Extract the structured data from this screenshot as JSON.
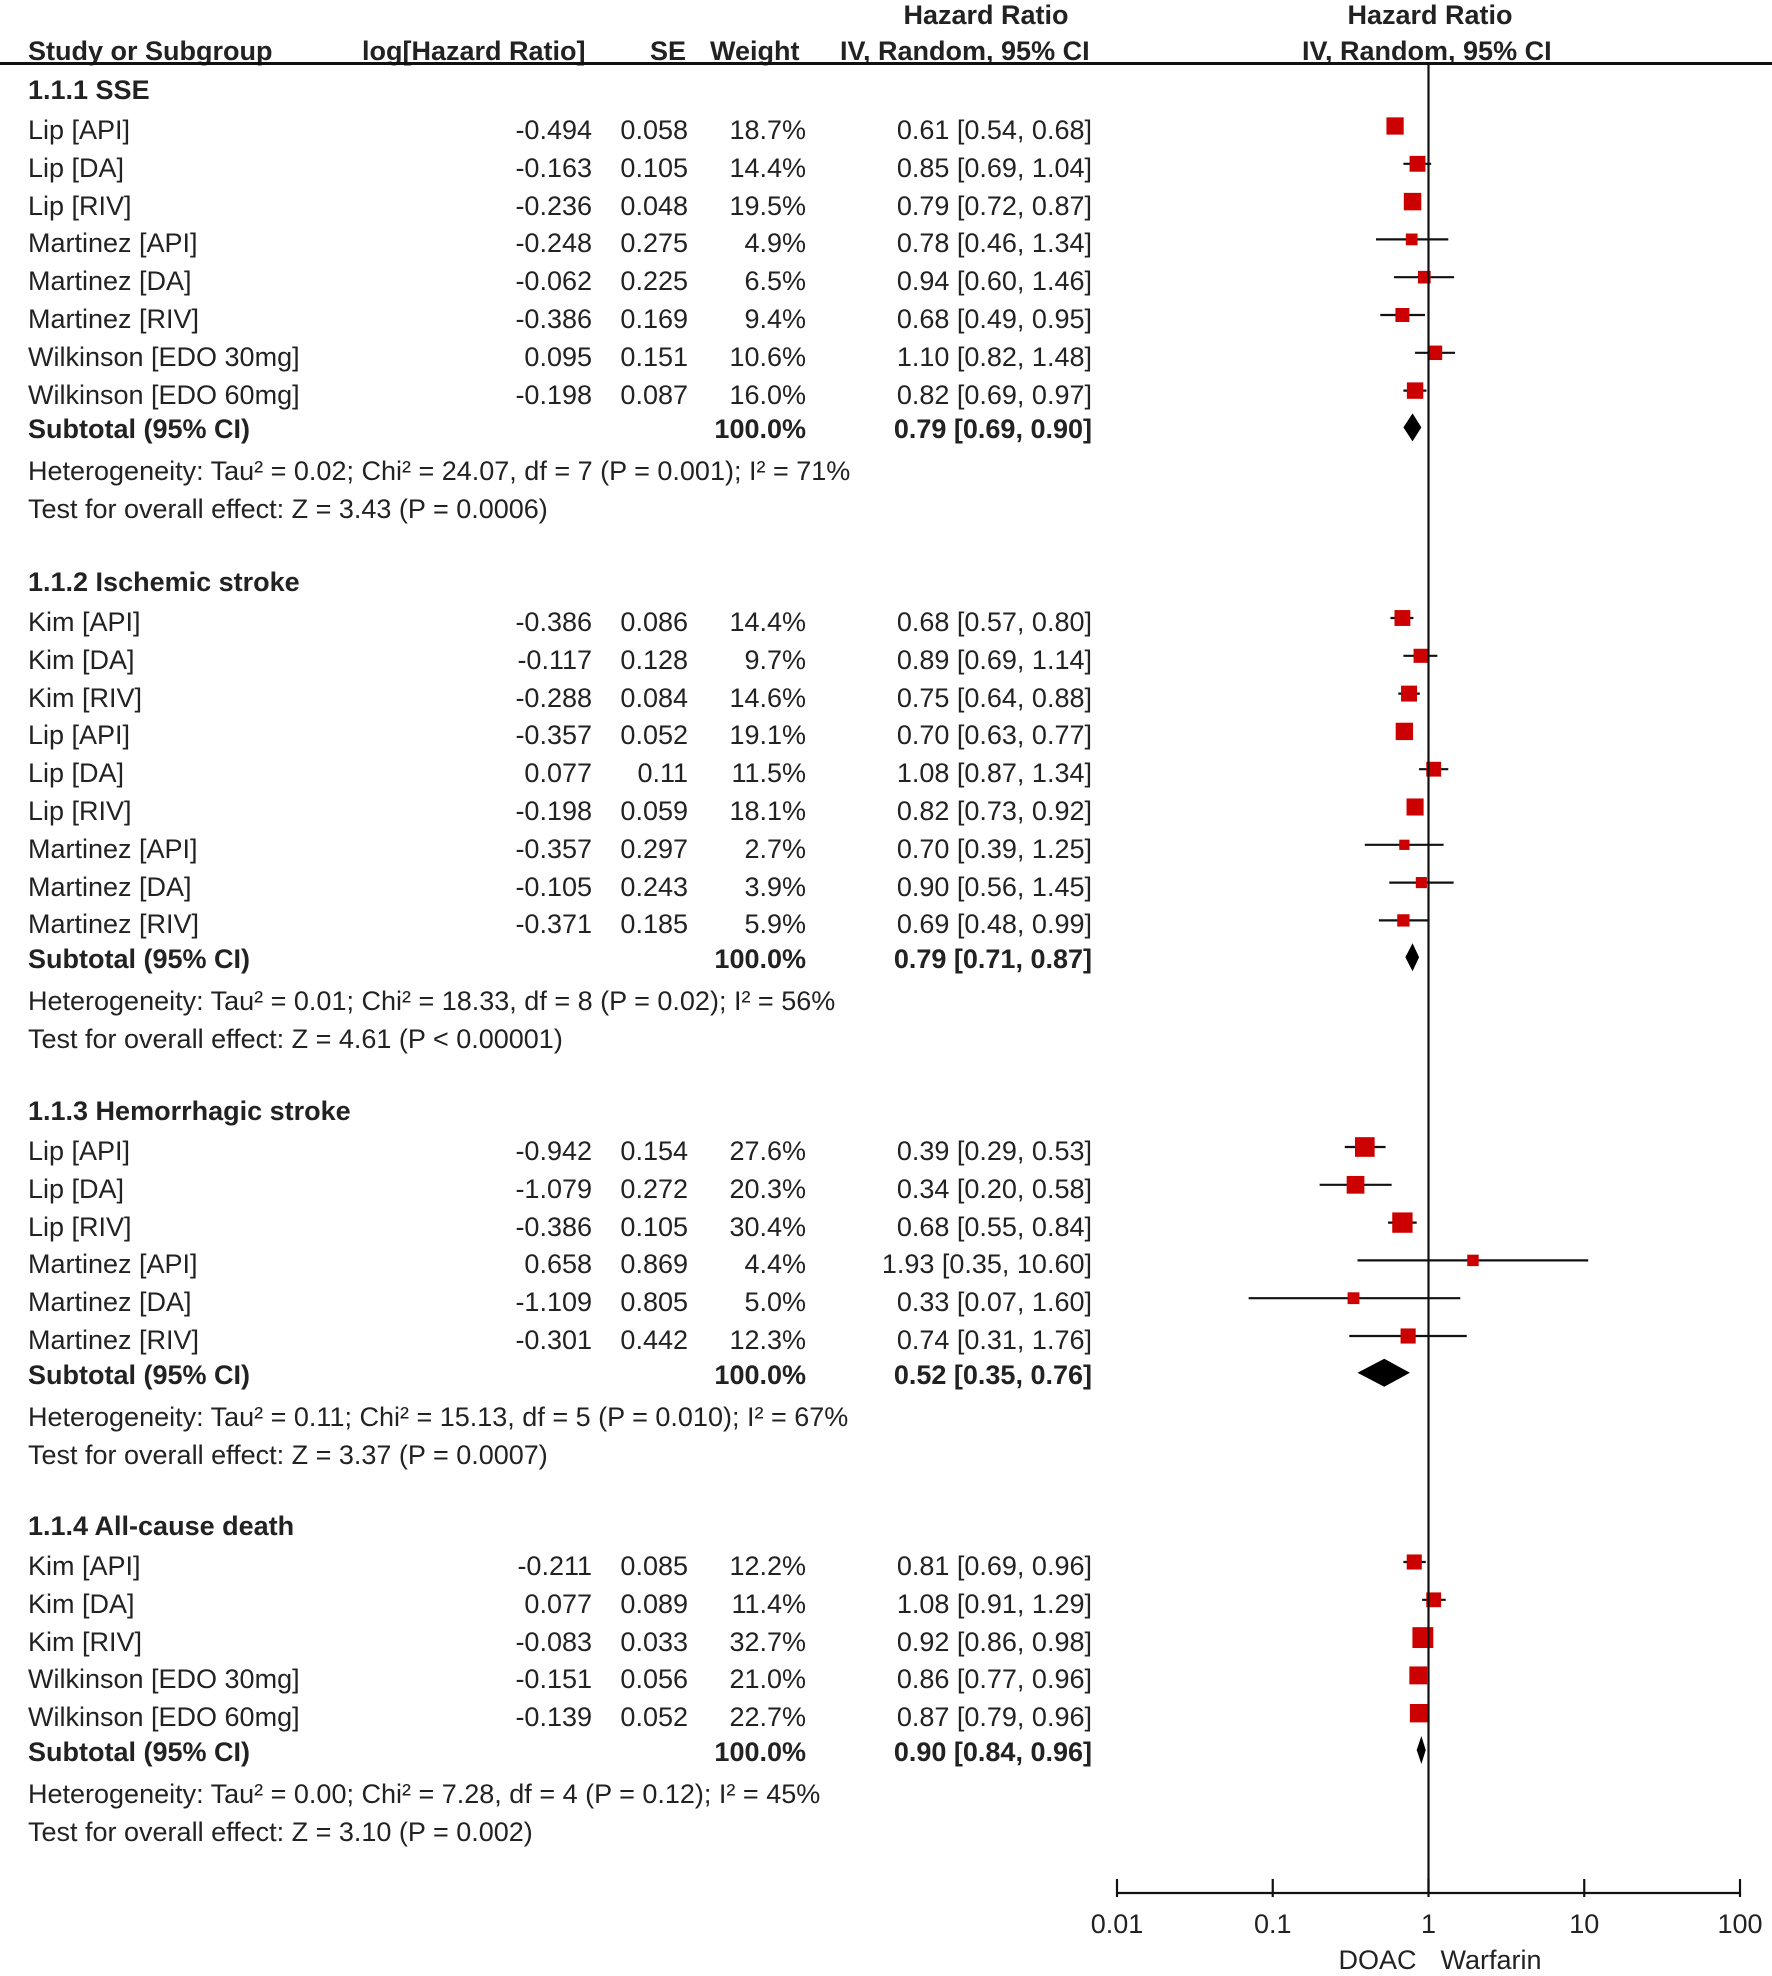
{
  "header": {
    "study_col": "Study or Subgroup",
    "loghr_col": "log[Hazard Ratio]",
    "se_col": "SE",
    "weight_col": "Weight",
    "hr_title": "Hazard Ratio",
    "hr_method": "IV, Random, 95% CI",
    "plot_title": "Hazard Ratio",
    "plot_method": "IV, Random, 95% CI"
  },
  "chart_data": {
    "type": "forest",
    "x_scale": "log",
    "xlim": [
      0.01,
      100
    ],
    "ticks": [
      "0.01",
      "0.1",
      "1",
      "10",
      "100"
    ],
    "tick_values": [
      0.01,
      0.1,
      1,
      10,
      100
    ],
    "axis_left_label": "DOAC",
    "axis_right_label": "Warfarin",
    "colors": {
      "study_marker": "#cc0000",
      "line": "#111111",
      "diamond": "#000000"
    },
    "groups": [
      {
        "name": "1.1.1 SSE",
        "studies": [
          {
            "study": "Lip [API]",
            "loghr": "-0.494",
            "se": "0.058",
            "weight": "18.7%",
            "ci_text": "0.61 [0.54, 0.68]",
            "hr": 0.61,
            "lo": 0.54,
            "hi": 0.68,
            "w": 18.7
          },
          {
            "study": "Lip [DA]",
            "loghr": "-0.163",
            "se": "0.105",
            "weight": "14.4%",
            "ci_text": "0.85 [0.69, 1.04]",
            "hr": 0.85,
            "lo": 0.69,
            "hi": 1.04,
            "w": 14.4
          },
          {
            "study": "Lip [RIV]",
            "loghr": "-0.236",
            "se": "0.048",
            "weight": "19.5%",
            "ci_text": "0.79 [0.72, 0.87]",
            "hr": 0.79,
            "lo": 0.72,
            "hi": 0.87,
            "w": 19.5
          },
          {
            "study": "Martinez [API]",
            "loghr": "-0.248",
            "se": "0.275",
            "weight": "4.9%",
            "ci_text": "0.78 [0.46, 1.34]",
            "hr": 0.78,
            "lo": 0.46,
            "hi": 1.34,
            "w": 4.9
          },
          {
            "study": "Martinez [DA]",
            "loghr": "-0.062",
            "se": "0.225",
            "weight": "6.5%",
            "ci_text": "0.94 [0.60, 1.46]",
            "hr": 0.94,
            "lo": 0.6,
            "hi": 1.46,
            "w": 6.5
          },
          {
            "study": "Martinez [RIV]",
            "loghr": "-0.386",
            "se": "0.169",
            "weight": "9.4%",
            "ci_text": "0.68 [0.49, 0.95]",
            "hr": 0.68,
            "lo": 0.49,
            "hi": 0.95,
            "w": 9.4
          },
          {
            "study": "Wilkinson [EDO 30mg]",
            "loghr": "0.095",
            "se": "0.151",
            "weight": "10.6%",
            "ci_text": "1.10 [0.82, 1.48]",
            "hr": 1.1,
            "lo": 0.82,
            "hi": 1.48,
            "w": 10.6
          },
          {
            "study": "Wilkinson [EDO 60mg]",
            "loghr": "-0.198",
            "se": "0.087",
            "weight": "16.0%",
            "ci_text": "0.82 [0.69, 0.97]",
            "hr": 0.82,
            "lo": 0.69,
            "hi": 0.97,
            "w": 16.0
          }
        ],
        "subtotal": {
          "label": "Subtotal (95% CI)",
          "weight": "100.0%",
          "ci_text": "0.79 [0.69, 0.90]",
          "hr": 0.79,
          "lo": 0.69,
          "hi": 0.9
        },
        "heterogeneity": "Heterogeneity: Tau² = 0.02; Chi² = 24.07, df = 7 (P = 0.001); I² = 71%",
        "overall": "Test for overall effect: Z = 3.43 (P = 0.0006)"
      },
      {
        "name": "1.1.2 Ischemic stroke",
        "studies": [
          {
            "study": "Kim [API]",
            "loghr": "-0.386",
            "se": "0.086",
            "weight": "14.4%",
            "ci_text": "0.68 [0.57, 0.80]",
            "hr": 0.68,
            "lo": 0.57,
            "hi": 0.8,
            "w": 14.4
          },
          {
            "study": "Kim [DA]",
            "loghr": "-0.117",
            "se": "0.128",
            "weight": "9.7%",
            "ci_text": "0.89 [0.69, 1.14]",
            "hr": 0.89,
            "lo": 0.69,
            "hi": 1.14,
            "w": 9.7
          },
          {
            "study": "Kim [RIV]",
            "loghr": "-0.288",
            "se": "0.084",
            "weight": "14.6%",
            "ci_text": "0.75 [0.64, 0.88]",
            "hr": 0.75,
            "lo": 0.64,
            "hi": 0.88,
            "w": 14.6
          },
          {
            "study": "Lip [API]",
            "loghr": "-0.357",
            "se": "0.052",
            "weight": "19.1%",
            "ci_text": "0.70 [0.63, 0.77]",
            "hr": 0.7,
            "lo": 0.63,
            "hi": 0.77,
            "w": 19.1
          },
          {
            "study": "Lip [DA]",
            "loghr": "0.077",
            "se": "0.11",
            "weight": "11.5%",
            "ci_text": "1.08 [0.87, 1.34]",
            "hr": 1.08,
            "lo": 0.87,
            "hi": 1.34,
            "w": 11.5
          },
          {
            "study": "Lip [RIV]",
            "loghr": "-0.198",
            "se": "0.059",
            "weight": "18.1%",
            "ci_text": "0.82 [0.73, 0.92]",
            "hr": 0.82,
            "lo": 0.73,
            "hi": 0.92,
            "w": 18.1
          },
          {
            "study": "Martinez [API]",
            "loghr": "-0.357",
            "se": "0.297",
            "weight": "2.7%",
            "ci_text": "0.70 [0.39, 1.25]",
            "hr": 0.7,
            "lo": 0.39,
            "hi": 1.25,
            "w": 2.7
          },
          {
            "study": "Martinez [DA]",
            "loghr": "-0.105",
            "se": "0.243",
            "weight": "3.9%",
            "ci_text": "0.90 [0.56, 1.45]",
            "hr": 0.9,
            "lo": 0.56,
            "hi": 1.45,
            "w": 3.9
          },
          {
            "study": "Martinez [RIV]",
            "loghr": "-0.371",
            "se": "0.185",
            "weight": "5.9%",
            "ci_text": "0.69 [0.48, 0.99]",
            "hr": 0.69,
            "lo": 0.48,
            "hi": 0.99,
            "w": 5.9
          }
        ],
        "subtotal": {
          "label": "Subtotal (95% CI)",
          "weight": "100.0%",
          "ci_text": "0.79 [0.71, 0.87]",
          "hr": 0.79,
          "lo": 0.71,
          "hi": 0.87
        },
        "heterogeneity": "Heterogeneity: Tau² = 0.01; Chi² = 18.33, df = 8 (P = 0.02); I² = 56%",
        "overall": "Test for overall effect: Z = 4.61 (P < 0.00001)"
      },
      {
        "name": "1.1.3 Hemorrhagic stroke",
        "studies": [
          {
            "study": "Lip [API]",
            "loghr": "-0.942",
            "se": "0.154",
            "weight": "27.6%",
            "ci_text": "0.39 [0.29, 0.53]",
            "hr": 0.39,
            "lo": 0.29,
            "hi": 0.53,
            "w": 27.6
          },
          {
            "study": "Lip [DA]",
            "loghr": "-1.079",
            "se": "0.272",
            "weight": "20.3%",
            "ci_text": "0.34 [0.20, 0.58]",
            "hr": 0.34,
            "lo": 0.2,
            "hi": 0.58,
            "w": 20.3
          },
          {
            "study": "Lip [RIV]",
            "loghr": "-0.386",
            "se": "0.105",
            "weight": "30.4%",
            "ci_text": "0.68 [0.55, 0.84]",
            "hr": 0.68,
            "lo": 0.55,
            "hi": 0.84,
            "w": 30.4
          },
          {
            "study": "Martinez [API]",
            "loghr": "0.658",
            "se": "0.869",
            "weight": "4.4%",
            "ci_text": "1.93 [0.35, 10.60]",
            "hr": 1.93,
            "lo": 0.35,
            "hi": 10.6,
            "w": 4.4
          },
          {
            "study": "Martinez [DA]",
            "loghr": "-1.109",
            "se": "0.805",
            "weight": "5.0%",
            "ci_text": "0.33 [0.07, 1.60]",
            "hr": 0.33,
            "lo": 0.07,
            "hi": 1.6,
            "w": 5.0
          },
          {
            "study": "Martinez [RIV]",
            "loghr": "-0.301",
            "se": "0.442",
            "weight": "12.3%",
            "ci_text": "0.74 [0.31, 1.76]",
            "hr": 0.74,
            "lo": 0.31,
            "hi": 1.76,
            "w": 12.3
          }
        ],
        "subtotal": {
          "label": "Subtotal (95% CI)",
          "weight": "100.0%",
          "ci_text": "0.52 [0.35, 0.76]",
          "hr": 0.52,
          "lo": 0.35,
          "hi": 0.76
        },
        "heterogeneity": "Heterogeneity: Tau² = 0.11; Chi² = 15.13, df = 5 (P = 0.010); I² = 67%",
        "overall": "Test for overall effect: Z = 3.37 (P = 0.0007)"
      },
      {
        "name": "1.1.4 All-cause death",
        "studies": [
          {
            "study": "Kim [API]",
            "loghr": "-0.211",
            "se": "0.085",
            "weight": "12.2%",
            "ci_text": "0.81 [0.69, 0.96]",
            "hr": 0.81,
            "lo": 0.69,
            "hi": 0.96,
            "w": 12.2
          },
          {
            "study": "Kim [DA]",
            "loghr": "0.077",
            "se": "0.089",
            "weight": "11.4%",
            "ci_text": "1.08 [0.91, 1.29]",
            "hr": 1.08,
            "lo": 0.91,
            "hi": 1.29,
            "w": 11.4
          },
          {
            "study": "Kim [RIV]",
            "loghr": "-0.083",
            "se": "0.033",
            "weight": "32.7%",
            "ci_text": "0.92 [0.86, 0.98]",
            "hr": 0.92,
            "lo": 0.86,
            "hi": 0.98,
            "w": 32.7
          },
          {
            "study": "Wilkinson [EDO 30mg]",
            "loghr": "-0.151",
            "se": "0.056",
            "weight": "21.0%",
            "ci_text": "0.86 [0.77, 0.96]",
            "hr": 0.86,
            "lo": 0.77,
            "hi": 0.96,
            "w": 21.0
          },
          {
            "study": "Wilkinson [EDO 60mg]",
            "loghr": "-0.139",
            "se": "0.052",
            "weight": "22.7%",
            "ci_text": "0.87 [0.79, 0.96]",
            "hr": 0.87,
            "lo": 0.79,
            "hi": 0.96,
            "w": 22.7
          }
        ],
        "subtotal": {
          "label": "Subtotal (95% CI)",
          "weight": "100.0%",
          "ci_text": "0.90 [0.84, 0.96]",
          "hr": 0.9,
          "lo": 0.84,
          "hi": 0.96
        },
        "heterogeneity": "Heterogeneity: Tau² = 0.00; Chi² = 7.28, df = 4 (P = 0.12); I² = 45%",
        "overall": "Test for overall effect: Z = 3.10 (P = 0.002)"
      }
    ]
  }
}
